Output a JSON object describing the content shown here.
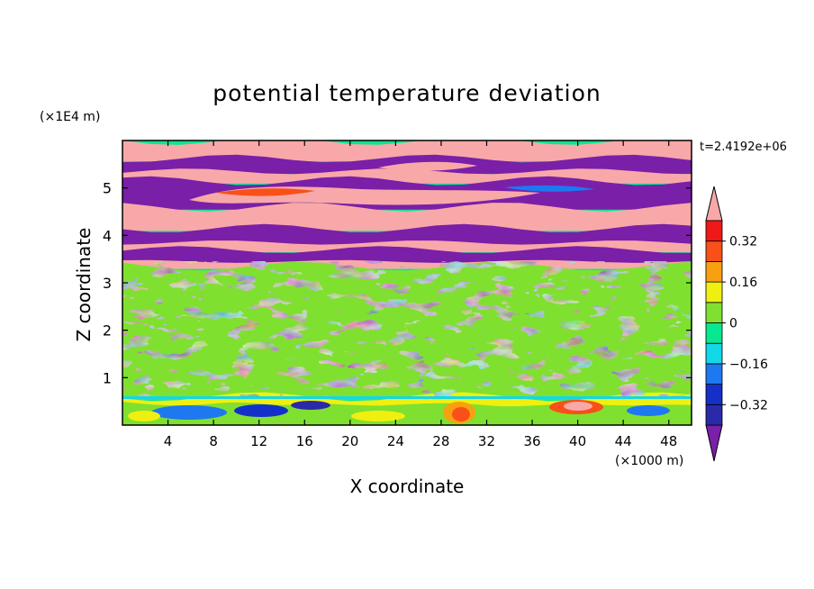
{
  "chart_data": {
    "type": "heatmap",
    "title": "potential temperature deviation",
    "time_label": "t=2.4192e+06",
    "xlabel": "X coordinate",
    "ylabel": "Z coordinate",
    "x_unit": "(×1000 m)",
    "y_unit": "(×1E4 m)",
    "xlim": [
      0,
      50
    ],
    "ylim": [
      0,
      6
    ],
    "x_ticks": [
      "4",
      "8",
      "12",
      "16",
      "20",
      "24",
      "28",
      "32",
      "36",
      "40",
      "44",
      "48"
    ],
    "y_ticks": [
      "1",
      "2",
      "3",
      "4",
      "5"
    ],
    "colorbar": {
      "labels": [
        "0.32",
        "0.16",
        "0",
        "−0.16",
        "−0.32"
      ],
      "levels": [
        -0.4,
        -0.32,
        -0.24,
        -0.16,
        -0.08,
        0,
        0.08,
        0.16,
        0.24,
        0.32,
        0.4
      ],
      "colors": [
        "#7a1fa8",
        "#2a2aa8",
        "#1430c8",
        "#1e78f0",
        "#12d8e8",
        "#08e890",
        "#80e030",
        "#f0f010",
        "#f8a010",
        "#f85018",
        "#f01818",
        "#f8a8a8"
      ],
      "extend": "both"
    },
    "layers": [
      {
        "z": [
          5.62,
          6.0
        ],
        "value": "above 0.4",
        "color": "#f8a8a8"
      },
      {
        "z": [
          5.35,
          5.62
        ],
        "value": "below -0.4",
        "color": "#7a1fa8"
      },
      {
        "z": [
          5.15,
          5.35
        ],
        "value": "above 0.4",
        "color": "#f8a8a8"
      },
      {
        "z": [
          4.6,
          5.15
        ],
        "value": "mixed -0.4 to 0.4",
        "color": "#7a1fa8"
      },
      {
        "z": [
          4.15,
          4.6
        ],
        "value": "above 0.4",
        "color": "#f8a8a8"
      },
      {
        "z": [
          3.85,
          4.15
        ],
        "value": "below -0.4",
        "color": "#7a1fa8"
      },
      {
        "z": [
          3.7,
          3.85
        ],
        "value": "above 0.4",
        "color": "#f8a8a8"
      },
      {
        "z": [
          3.45,
          3.7
        ],
        "value": "below -0.4",
        "color": "#7a1fa8"
      },
      {
        "z": [
          3.35,
          3.45
        ],
        "value": "above 0.4",
        "color": "#f8a8a8"
      },
      {
        "z": [
          0.6,
          3.35
        ],
        "value": "-0.08 to 0.08",
        "color": "#80e030"
      },
      {
        "z": [
          0.0,
          0.6
        ],
        "value": "mixed -0.32 to 0.4",
        "color": "#f0f010"
      }
    ]
  }
}
